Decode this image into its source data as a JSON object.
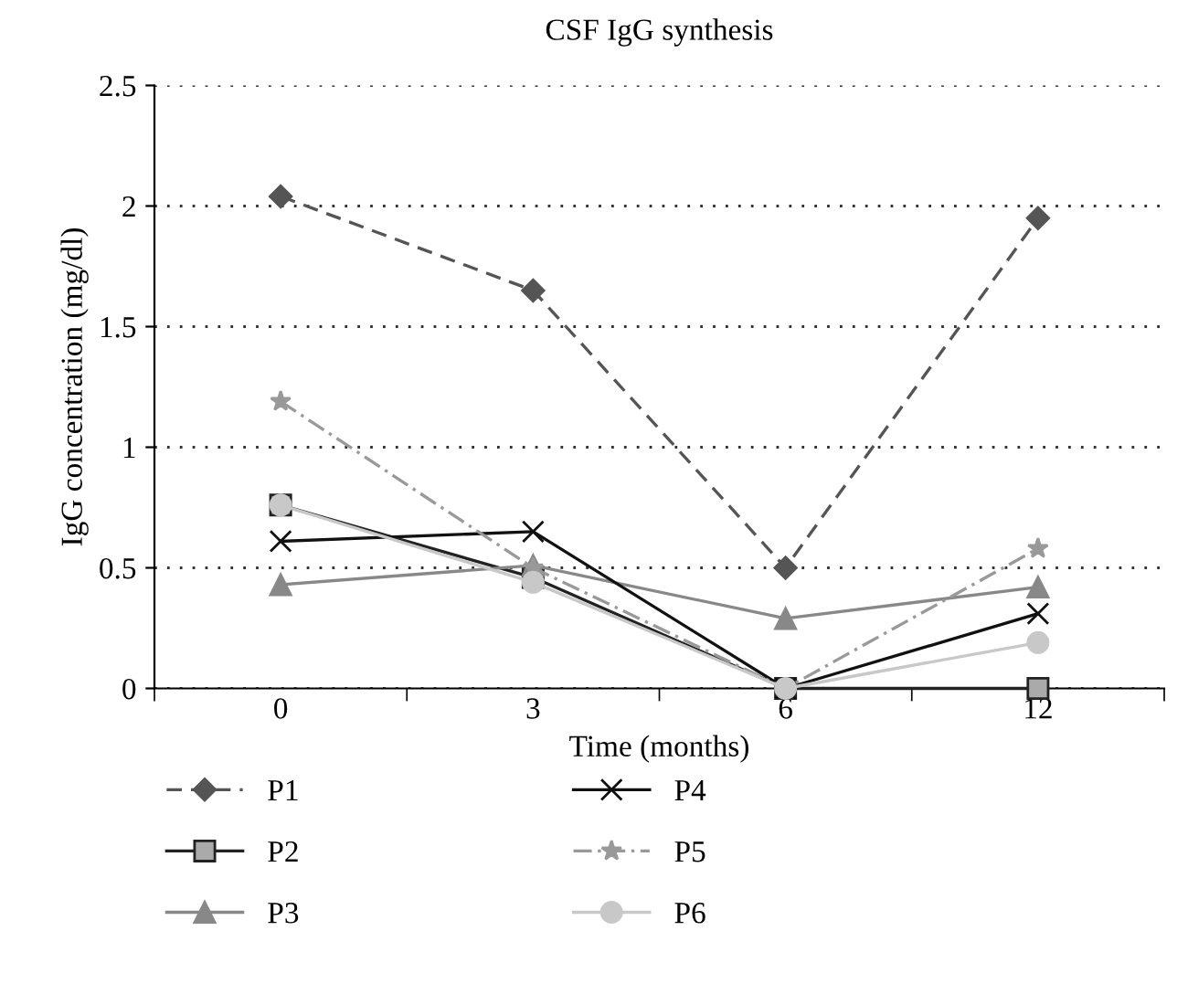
{
  "chart_data": {
    "type": "line",
    "title": "CSF IgG synthesis",
    "xlabel": "Time (months)",
    "ylabel": "IgG concentration (mg/dl)",
    "categories": [
      "0",
      "3",
      "6",
      "12"
    ],
    "series": [
      {
        "name": "P1",
        "color": "#555555",
        "marker": "diamond",
        "line_style": "dashed",
        "values": [
          2.04,
          1.65,
          0.5,
          1.95
        ]
      },
      {
        "name": "P2",
        "color": "#222222",
        "marker": "square",
        "line_style": "solid",
        "values": [
          0.76,
          0.46,
          0,
          0
        ]
      },
      {
        "name": "P3",
        "color": "#888888",
        "marker": "triangle",
        "line_style": "solid",
        "values": [
          0.43,
          0.51,
          0.29,
          0.42
        ]
      },
      {
        "name": "P4",
        "color": "#111111",
        "marker": "cross",
        "line_style": "solid",
        "values": [
          0.61,
          0.65,
          0,
          0.31
        ]
      },
      {
        "name": "P5",
        "color": "#999999",
        "marker": "star",
        "line_style": "dashdot",
        "values": [
          1.19,
          0.5,
          0,
          0.58
        ]
      },
      {
        "name": "P6",
        "color": "#c8c8c8",
        "marker": "circle",
        "line_style": "solid",
        "values": [
          0.76,
          0.44,
          0,
          0.19
        ]
      }
    ],
    "ylim": [
      0,
      2.5
    ],
    "yticks": [
      0,
      0.5,
      1,
      1.5,
      2,
      2.5
    ],
    "grid": "y",
    "legend": "bottom"
  }
}
